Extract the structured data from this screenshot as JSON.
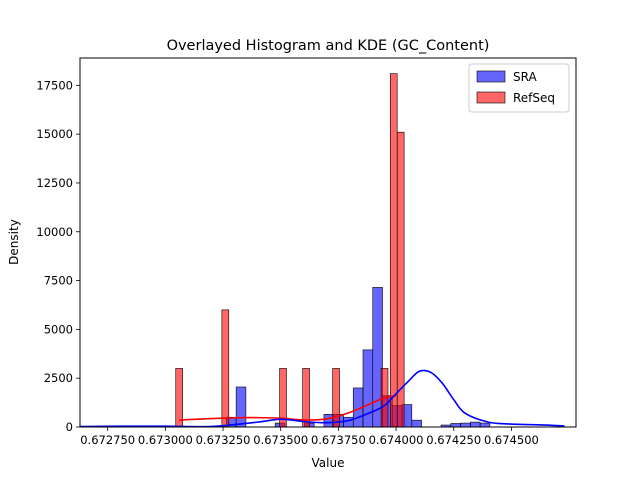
{
  "chart_data": {
    "type": "histogram",
    "title": "Overlayed Histogram and KDE (GC_Content)",
    "xlabel": "Value",
    "ylabel": "Density",
    "xlim": [
      0.67263,
      0.67478
    ],
    "ylim": [
      0,
      18900
    ],
    "x_ticks": [
      0.67275,
      0.673,
      0.67325,
      0.6735,
      0.67375,
      0.674,
      0.67425,
      0.6745
    ],
    "x_tick_labels": [
      "0.672750",
      "0.673000",
      "0.673250",
      "0.673500",
      "0.673750",
      "0.674000",
      "0.674250",
      "0.674500"
    ],
    "y_ticks": [
      0,
      2500,
      5000,
      7500,
      10000,
      12500,
      15000,
      17500
    ],
    "y_tick_labels": [
      "0",
      "2500",
      "5000",
      "7500",
      "10000",
      "12500",
      "15000",
      "17500"
    ],
    "legend": {
      "position": "top-right",
      "entries": [
        {
          "label": "SRA",
          "color": "#0000ff"
        },
        {
          "label": "RefSeq",
          "color": "#ff0000"
        }
      ]
    },
    "series": [
      {
        "name": "SRA",
        "color": "#0000ff",
        "alpha": 0.6,
        "bins": [
          {
            "x0": 0.67263,
            "x1": 0.674745,
            "n": 50
          }
        ],
        "bin_count": 50,
        "bin_start": 0.67263,
        "bin_end": 0.674745,
        "values": [
          0,
          0,
          50,
          0,
          0,
          30,
          0,
          30,
          0,
          0,
          0,
          0,
          0,
          0,
          40,
          500,
          2050,
          0,
          0,
          0,
          200,
          0,
          0,
          200,
          0,
          650,
          650,
          500,
          2000,
          3950,
          7150,
          1600,
          1100,
          1150,
          350,
          0,
          0,
          100,
          180,
          200,
          250,
          200,
          0,
          0,
          0,
          0,
          0,
          0,
          0,
          0
        ],
        "kde": {
          "x": [
            0.67263,
            0.6728,
            0.673,
            0.6732,
            0.6734,
            0.6735,
            0.6736,
            0.6737,
            0.6738,
            0.6739,
            0.67395,
            0.674,
            0.67405,
            0.6741,
            0.67415,
            0.6742,
            0.67425,
            0.6743,
            0.6744,
            0.6745,
            0.67465,
            0.67473
          ],
          "y": [
            20,
            40,
            40,
            30,
            250,
            400,
            280,
            220,
            350,
            800,
            1100,
            1700,
            2300,
            2850,
            2800,
            2250,
            1400,
            700,
            250,
            150,
            100,
            50
          ]
        }
      },
      {
        "name": "RefSeq",
        "color": "#ff0000",
        "alpha": 0.6,
        "bins": [
          {
            "x0": 0.673045,
            "x1": 0.673075,
            "value": 3000
          },
          {
            "x0": 0.673245,
            "x1": 0.673275,
            "value": 6000
          },
          {
            "x0": 0.673495,
            "x1": 0.673525,
            "value": 3000
          },
          {
            "x0": 0.673595,
            "x1": 0.673625,
            "value": 3000
          },
          {
            "x0": 0.673725,
            "x1": 0.673755,
            "value": 3000
          },
          {
            "x0": 0.673935,
            "x1": 0.673965,
            "value": 3000
          },
          {
            "x0": 0.673975,
            "x1": 0.674005,
            "value": 18100
          },
          {
            "x0": 0.674005,
            "x1": 0.674035,
            "value": 15100
          }
        ],
        "kde": {
          "x": [
            0.67306,
            0.6731,
            0.6732,
            0.6733,
            0.6734,
            0.6735,
            0.6736,
            0.6737,
            0.6738,
            0.6739,
            0.67395,
            0.674
          ],
          "y": [
            350,
            380,
            430,
            470,
            480,
            450,
            360,
            420,
            750,
            1250,
            1500,
            1600
          ]
        }
      }
    ]
  }
}
